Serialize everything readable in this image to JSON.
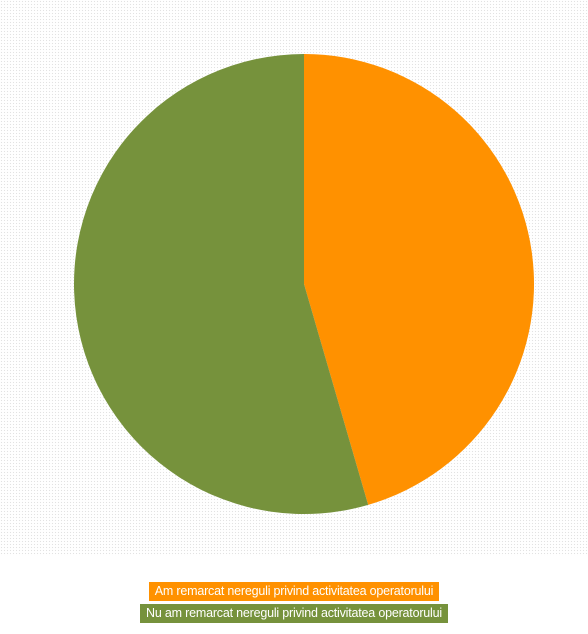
{
  "chart_data": {
    "type": "pie",
    "title": "",
    "slices": [
      {
        "label": "Am remarcat nereguli privind activitatea operatorului",
        "value": 45.5,
        "color": "#ff9100"
      },
      {
        "label": "Nu am remarcat nereguli privind activitatea operatorului",
        "value": 54.5,
        "color": "#76923c"
      }
    ],
    "start_angle": "top (12 o'clock), clockwise",
    "legend_position": "bottom",
    "data_labels": false
  }
}
